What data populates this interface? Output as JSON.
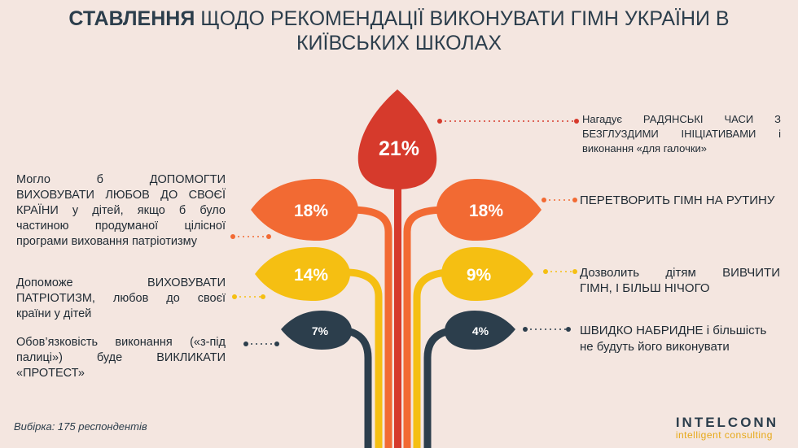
{
  "title": {
    "bold": "СТАВЛЕННЯ",
    "rest_line1": "ЩОДО РЕКОМЕНДАЦІЇ ВИКОНУВАТИ ГІМН УКРАЇНИ В",
    "line2": "КИЇВСЬКИХ ШКОЛАХ"
  },
  "chart_data": {
    "type": "infographic",
    "items": [
      {
        "value": 21,
        "label": "21%",
        "side": "top",
        "color": "#d63a2c",
        "text": "Нагадує РАДЯНСЬКІ ЧАСИ З БЕЗГЛУЗДИМИ ІНІЦІАТИВАМИ і виконання «для галочки»"
      },
      {
        "value": 18,
        "label": "18%",
        "side": "left",
        "color": "#f26a33",
        "text": "Могло б ДОПОМОГТИ ВИХОВУВАТИ ЛЮБОВ ДО СВОЄЇ КРАЇНИ у дітей, якщо б було частиною продуманої цілісної програми виховання патріотизму"
      },
      {
        "value": 18,
        "label": "18%",
        "side": "right",
        "color": "#f26a33",
        "text": "ПЕРЕТВОРИТЬ ГІМН НА РУТИНУ"
      },
      {
        "value": 14,
        "label": "14%",
        "side": "left",
        "color": "#f5bf12",
        "text": "Допоможе ВИХОВУВАТИ ПАТРІОТИЗМ, любов до своєї країни у дітей"
      },
      {
        "value": 9,
        "label": "9%",
        "side": "right",
        "color": "#f5bf12",
        "text": "Дозволить дітям ВИВЧИТИ ГІМН, І БІЛЬШ НІЧОГО"
      },
      {
        "value": 7,
        "label": "7%",
        "side": "left",
        "color": "#2c3e4c",
        "text": "Обов'язковість виконання («з-під палиці») буде ВИКЛИКАТИ «ПРОТЕСТ»"
      },
      {
        "value": 4,
        "label": "4%",
        "side": "right",
        "color": "#2c3e4c",
        "text": "ШВИДКО НАБРИДНЕ і більшість не будуть його виконувати"
      }
    ]
  },
  "texts": {
    "top_l1": "Нагадує РАДЯНСЬКІ ЧАСИ З",
    "top_l2": "БЕЗГЛУЗДИМИ ІНІЦІАТИВАМИ і",
    "top_l3": "виконання «для галочки»",
    "l1_l1": "Могло б ДОПОМОГТИ",
    "l1_l2": "ВИХОВУВАТИ ЛЮБОВ ДО СВОЄЇ",
    "l1_l3": "КРАЇНИ у дітей, якщо б було",
    "l1_l4": "частиною продуманої цілісної",
    "l1_l5": "програми виховання патріотизму",
    "r1": "ПЕРЕТВОРИТЬ ГІМН НА РУТИНУ",
    "l2_l1": "Допоможе ВИХОВУВАТИ",
    "l2_l2": "ПАТРІОТИЗМ, любов до своєї",
    "l2_l3": "країни у дітей",
    "r2_l1": "Дозволить дітям ВИВЧИТИ",
    "r2_l2": "ГІМН, І БІЛЬШ НІЧОГО",
    "l3_l1": "Обов’язковість виконання («з-під",
    "l3_l2": "палиці») буде ВИКЛИКАТИ",
    "l3_l3": "«ПРОТЕСТ»",
    "r3_l1": "ШВИДКО НАБРИДНЕ і більшість",
    "r3_l2": "не будуть його виконувати"
  },
  "footnote": "Вибірка: 175 респондентів",
  "logo": {
    "name": "INTELCONN",
    "tagline": "intelligent consulting"
  },
  "colors": {
    "background": "#f4e6e0",
    "red": "#d63a2c",
    "orange": "#f26a33",
    "yellow": "#f5bf12",
    "dark": "#2c3e4c"
  }
}
